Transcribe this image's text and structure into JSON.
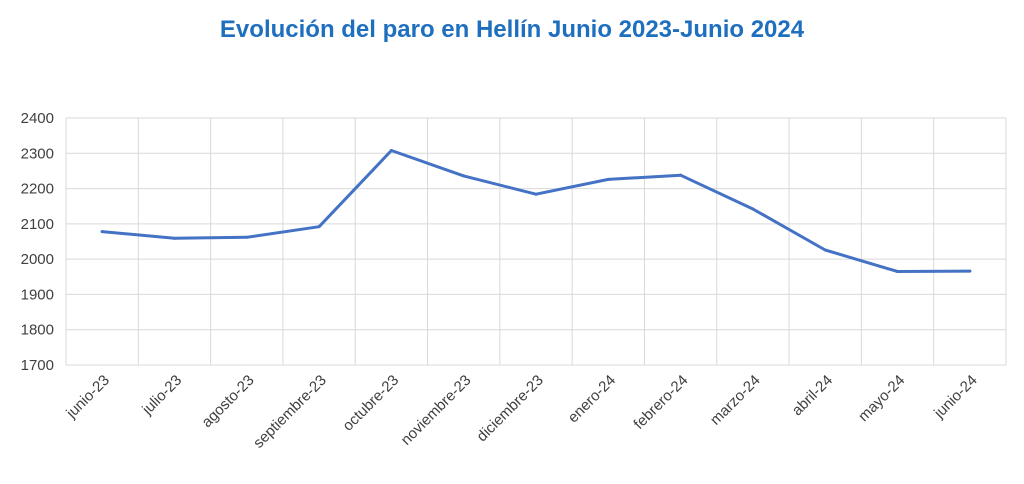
{
  "chart_data": {
    "type": "line",
    "title": "Evolución del paro en Hellín Junio 2023-Junio 2024",
    "categories": [
      "junio-23",
      "julio-23",
      "agosto-23",
      "septiembre-23",
      "octubre-23",
      "noviembre-23",
      "diciembre-23",
      "enero-24",
      "febrero-24",
      "marzo-24",
      "abril-24",
      "mayo-24",
      "junio-24"
    ],
    "series": [
      {
        "values": [
          2078,
          2059,
          2062,
          2092,
          2308,
          2236,
          2184,
          2226,
          2238,
          2142,
          2026,
          1965,
          1966
        ]
      }
    ],
    "xlabel": "",
    "ylabel": "",
    "ylim": [
      1700,
      2400
    ],
    "yticks": [
      1700,
      1800,
      1900,
      2000,
      2100,
      2200,
      2300,
      2400
    ],
    "grid": true,
    "colors": {
      "title": "#1f6fbf",
      "line": "#4472c4",
      "grid": "#d9d9d9"
    }
  }
}
